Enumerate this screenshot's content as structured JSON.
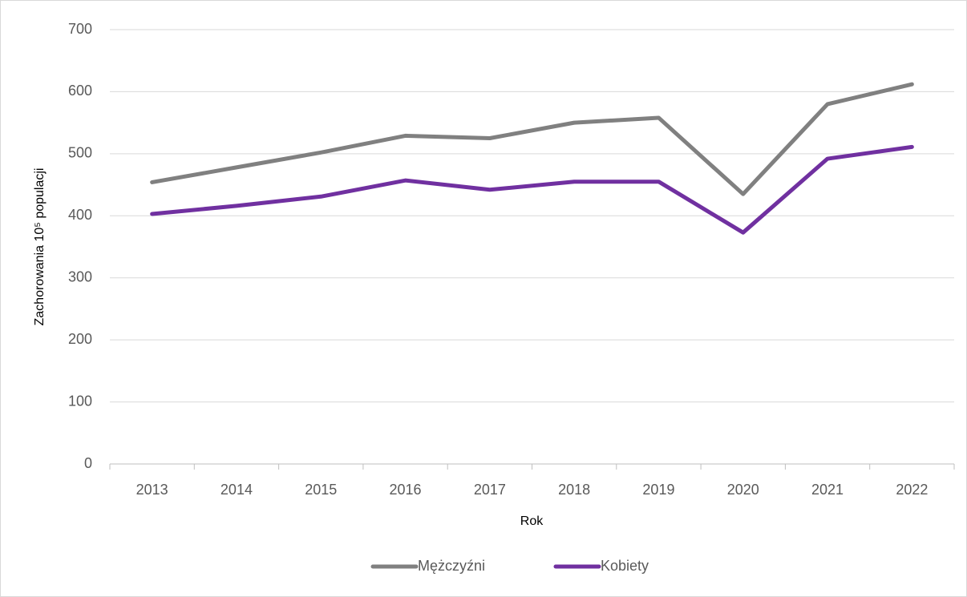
{
  "chart_data": {
    "type": "line",
    "xlabel": "Rok",
    "ylabel": "Zachorowania 10⁵ populacji",
    "categories": [
      "2013",
      "2014",
      "2015",
      "2016",
      "2017",
      "2018",
      "2019",
      "2020",
      "2021",
      "2022"
    ],
    "series": [
      {
        "name": "Mężczyźni",
        "color": "#808080",
        "values": [
          454,
          478,
          502,
          529,
          525,
          550,
          558,
          435,
          580,
          612
        ]
      },
      {
        "name": "Kobiety",
        "color": "#7030a0",
        "values": [
          403,
          416,
          431,
          457,
          442,
          455,
          455,
          373,
          492,
          511
        ]
      }
    ],
    "ylim": [
      0,
      700
    ],
    "yticks": [
      0,
      100,
      200,
      300,
      400,
      500,
      600,
      700
    ],
    "grid": true,
    "legend": "bottom"
  }
}
